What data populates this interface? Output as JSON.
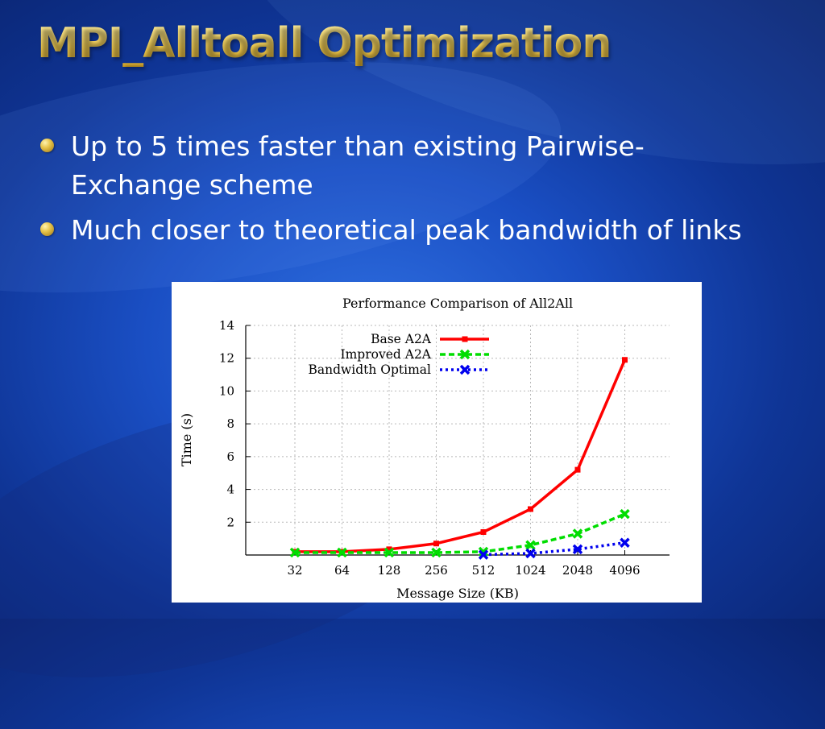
{
  "slide": {
    "title": "MPI_Alltoall Optimization",
    "bullets": [
      "Up to 5 times faster than existing Pairwise-Exchange scheme",
      "Much closer to theoretical peak bandwidth of links"
    ]
  },
  "colors": {
    "title": "#f3cf55",
    "base_series": "#ff0000",
    "improved_series": "#00dd00",
    "bandwidth_series": "#0000ee"
  },
  "chart_data": {
    "type": "line",
    "title": "Performance Comparison of All2All",
    "xlabel": "Message Size (KB)",
    "ylabel": "Time (s)",
    "categories": [
      "32",
      "64",
      "128",
      "256",
      "512",
      "1024",
      "2048",
      "4096"
    ],
    "y_ticks": [
      2,
      4,
      6,
      8,
      10,
      12,
      14
    ],
    "ylim": [
      0,
      14
    ],
    "grid": true,
    "legend_position": "top-right",
    "series": [
      {
        "name": "Base A2A",
        "style": "solid",
        "marker": "square",
        "color": "#ff0000",
        "values": [
          0.2,
          0.2,
          0.35,
          0.7,
          1.4,
          2.8,
          5.2,
          11.9
        ]
      },
      {
        "name": "Improved A2A",
        "style": "dashed",
        "marker": "x",
        "color": "#00dd00",
        "values": [
          0.15,
          0.15,
          0.15,
          0.15,
          0.2,
          0.6,
          1.3,
          2.5
        ]
      },
      {
        "name": "Bandwidth Optimal",
        "style": "dotted",
        "marker": "x",
        "color": "#0000ee",
        "values": [
          null,
          null,
          null,
          null,
          0.02,
          0.1,
          0.35,
          0.75
        ]
      }
    ]
  }
}
